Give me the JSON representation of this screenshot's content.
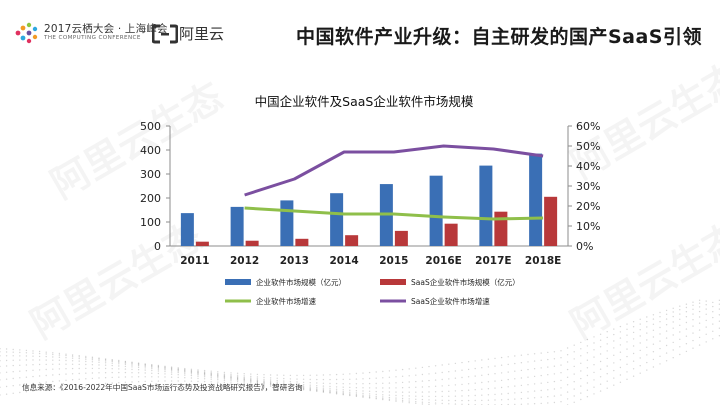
{
  "header": {
    "conference_line1": "2017云栖大会 · 上海峰会",
    "conference_line2": "THE COMPUTING CONFERENCE",
    "aliyun_label": "阿里云",
    "title": "中国软件产业升级：自主研发的国产SaaS引领"
  },
  "watermark_text": "阿里云生态",
  "chart_data": {
    "type": "bar",
    "title": "中国企业软件及SaaS企业软件市场规模",
    "categories": [
      "2011",
      "2012",
      "2013",
      "2014",
      "2015",
      "2016E",
      "2017E",
      "2018E"
    ],
    "ylim_left": [
      0,
      500
    ],
    "yticks_left": [
      "0",
      "100",
      "200",
      "300",
      "400",
      "500"
    ],
    "ylim_right": [
      0,
      60
    ],
    "yticks_right": [
      "0%",
      "10%",
      "20%",
      "30%",
      "40%",
      "50%",
      "60%"
    ],
    "grid": false,
    "legend_placement": "bottom",
    "series": [
      {
        "name": "企业软件市场规模（亿元）",
        "kind": "bar",
        "axis": "left",
        "color": "#3a6fb5",
        "values": [
          137,
          163,
          190,
          220,
          258,
          293,
          335,
          385
        ]
      },
      {
        "name": "SaaS企业软件市场规模（亿元）",
        "kind": "bar",
        "axis": "left",
        "color": "#b8383a",
        "values": [
          18,
          22,
          30,
          45,
          63,
          93,
          143,
          205
        ]
      },
      {
        "name": "企业软件市场增速",
        "kind": "line",
        "axis": "right",
        "color": "#8fbf4a",
        "values": [
          null,
          19,
          17.5,
          16,
          16,
          14.5,
          13.5,
          14
        ]
      },
      {
        "name": "SaaS企业软件市场增速",
        "kind": "line",
        "axis": "right",
        "color": "#7b4fa0",
        "values": [
          null,
          25.5,
          33.5,
          47,
          47,
          50,
          48.5,
          45
        ]
      }
    ]
  },
  "source": "信息来源：《2016-2022年中国SaaS市场运行态势及投资战略研究报告》，智研咨询"
}
